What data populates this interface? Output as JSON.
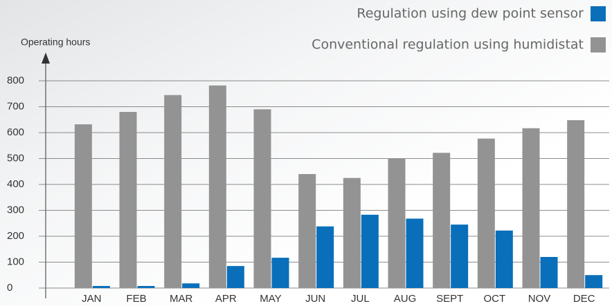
{
  "chart_data": {
    "type": "bar",
    "y_label": "Operating hours",
    "categories": [
      "JAN",
      "FEB",
      "MAR",
      "APR",
      "MAY",
      "JUN",
      "JUL",
      "AUG",
      "SEPT",
      "OCT",
      "NOV",
      "DEC"
    ],
    "series": [
      {
        "name": "Conventional regulation using humidistat",
        "color": "#939393",
        "values": [
          632,
          680,
          745,
          782,
          690,
          440,
          425,
          500,
          522,
          577,
          617,
          648
        ]
      },
      {
        "name": "Regulation using dew point sensor",
        "color": "#0a6fba",
        "values": [
          8,
          8,
          18,
          85,
          117,
          238,
          283,
          268,
          245,
          222,
          120,
          50
        ]
      }
    ],
    "ylim": [
      0,
      800
    ],
    "yticks": [
      0,
      100,
      200,
      300,
      400,
      500,
      600,
      700,
      800
    ],
    "grid": true
  }
}
